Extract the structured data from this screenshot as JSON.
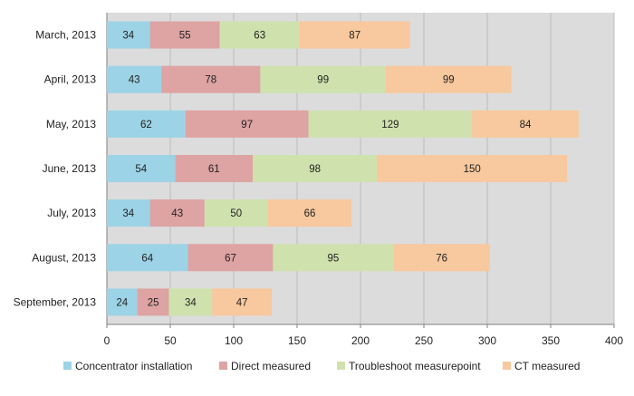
{
  "chart_data": {
    "type": "bar",
    "orientation": "horizontal",
    "stacked": true,
    "categories": [
      "March, 2013",
      "April, 2013",
      "May, 2013",
      "June, 2013",
      "July, 2013",
      "August, 2013",
      "September, 2013"
    ],
    "series": [
      {
        "name": "Concentrator installation",
        "values": [
          34,
          43,
          62,
          54,
          34,
          64,
          24
        ],
        "color": "#9dd3e6"
      },
      {
        "name": "Direct measured",
        "values": [
          55,
          78,
          97,
          61,
          43,
          67,
          25
        ],
        "color": "#dea3a3"
      },
      {
        "name": "Troubleshoot measurepoint",
        "values": [
          63,
          99,
          129,
          98,
          50,
          95,
          34
        ],
        "color": "#cfe2ae"
      },
      {
        "name": "CT measured",
        "values": [
          87,
          99,
          84,
          150,
          66,
          76,
          47
        ],
        "color": "#f8c89e"
      }
    ],
    "xlim": [
      0,
      400
    ],
    "xticks": [
      "0",
      "50",
      "100",
      "150",
      "200",
      "250",
      "300",
      "350",
      "400"
    ],
    "grid": true,
    "plot_background": "#dcdcdc",
    "legend_position": "bottom",
    "title": "",
    "xlabel": "",
    "ylabel": ""
  }
}
